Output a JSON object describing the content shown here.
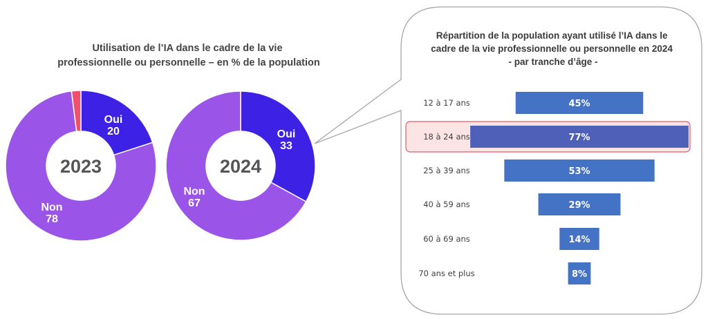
{
  "left_panel": {
    "title_lines": [
      "Utilisation de l’IA dans le cadre de la vie",
      "professionnelle ou personnelle – en % de la population"
    ]
  },
  "right_panel": {
    "title_lines": [
      "Répartition de la population ayant utilisé l’IA dans le",
      "cadre de la vie professionnelle ou personnelle en 2024",
      "- par tranche d’âge -"
    ],
    "highlighted_category": "18 à 24 ans"
  },
  "colors": {
    "oui": "#3d22e6",
    "non": "#9b54e8",
    "other": "#f0506e",
    "bar": "#4472c4",
    "bar_highlight": "#4f60b8",
    "highlight_fill": "#fde4e4",
    "highlight_border": "#e05a6a"
  },
  "chart_data": [
    {
      "type": "pie",
      "title": "2023",
      "center_label": "2023",
      "slices": [
        {
          "name": "Oui",
          "value": 20,
          "color": "#3d22e6"
        },
        {
          "name": "Non",
          "value": 78,
          "color": "#9b54e8"
        },
        {
          "name": "",
          "value": 2,
          "color": "#f0506e"
        }
      ]
    },
    {
      "type": "pie",
      "title": "2024",
      "center_label": "2024",
      "slices": [
        {
          "name": "Oui",
          "value": 33,
          "color": "#3d22e6"
        },
        {
          "name": "Non",
          "value": 67,
          "color": "#9b54e8"
        }
      ]
    },
    {
      "type": "bar",
      "orientation": "horizontal-centered",
      "title": "Répartition de la population ayant utilisé l’IA dans le cadre de la vie professionnelle ou personnelle en 2024 - par tranche d’âge -",
      "categories": [
        "12 à 17 ans",
        "18 à 24 ans",
        "25 à 39 ans",
        "40 à 59 ans",
        "60 à 69 ans",
        "70 ans et plus"
      ],
      "values": [
        45,
        77,
        53,
        29,
        14,
        8
      ],
      "value_labels": [
        "45%",
        "77%",
        "53%",
        "29%",
        "14%",
        "8%"
      ],
      "unit": "%"
    }
  ]
}
